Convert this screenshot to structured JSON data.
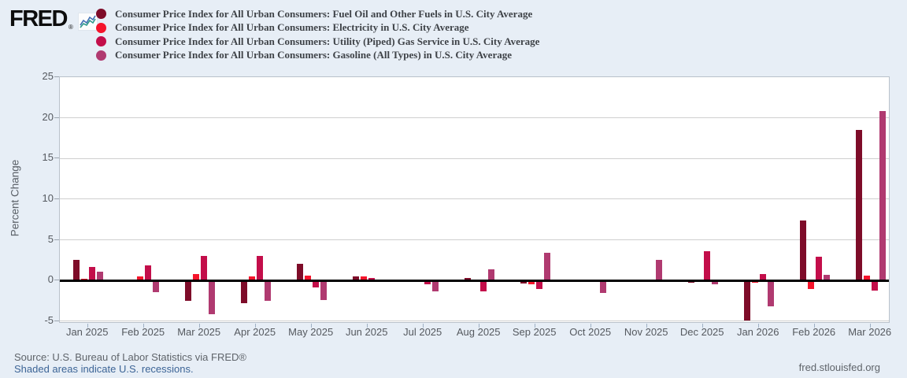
{
  "header": {
    "logo_text": "FRED",
    "logo_reg": "®"
  },
  "legend": {
    "items": [
      {
        "label": "Consumer Price Index for All Urban Consumers: Fuel Oil and Other Fuels in U.S. City Average",
        "color": "#7e0c29"
      },
      {
        "label": "Consumer Price Index for All Urban Consumers: Electricity in U.S. City Average",
        "color": "#f5142b"
      },
      {
        "label": "Consumer Price Index for All Urban Consumers: Utility (Piped) Gas Service in U.S. City Average",
        "color": "#c30e4a"
      },
      {
        "label": "Consumer Price Index for All Urban Consumers: Gasoline (All Types) in U.S. City Average",
        "color": "#b03a70"
      }
    ]
  },
  "chart_data": {
    "type": "bar",
    "title": "",
    "xlabel": "",
    "ylabel": "Percent Change",
    "ylim": [
      -5.3,
      25
    ],
    "yticks": [
      25,
      20,
      15,
      10,
      5,
      0,
      -5
    ],
    "grid": true,
    "legend_position": "top",
    "categories": [
      "Jan 2025",
      "Feb 2025",
      "Mar 2025",
      "Apr 2025",
      "May 2025",
      "Jun 2025",
      "Jul 2025",
      "Aug 2025",
      "Sep 2025",
      "Oct 2025",
      "Nov 2025",
      "Dec 2025",
      "Jan 2026",
      "Feb 2026",
      "Mar 2026"
    ],
    "series": [
      {
        "name": "Consumer Price Index for All Urban Consumers: Fuel Oil and Other Fuels in U.S. City Average",
        "color": "#7e0c29",
        "values": [
          2.5,
          0,
          -2.5,
          -2.8,
          2.1,
          0.5,
          0,
          0.3,
          -0.4,
          0,
          0,
          -0.3,
          -4.9,
          7.4,
          18.5
        ]
      },
      {
        "name": "Consumer Price Index for All Urban Consumers: Electricity in U.S. City Average",
        "color": "#f5142b",
        "values": [
          0.2,
          0.5,
          0.8,
          0.5,
          0.6,
          0.5,
          0,
          0,
          -0.5,
          0,
          0,
          0,
          -0.3,
          -1.0,
          0.6
        ]
      },
      {
        "name": "Consumer Price Index for All Urban Consumers: Utility (Piped) Gas Service in U.S. City Average",
        "color": "#c30e4a",
        "values": [
          1.7,
          1.9,
          3.0,
          3.0,
          -0.8,
          0.3,
          -0.5,
          -1.3,
          -1.0,
          0,
          0,
          3.6,
          0.8,
          2.9,
          -1.2
        ]
      },
      {
        "name": "Consumer Price Index for All Urban Consumers: Gasoline (All Types) in U.S. City Average",
        "color": "#b03a70",
        "values": [
          1.1,
          -1.4,
          -4.1,
          -2.5,
          -2.4,
          0,
          -1.3,
          1.4,
          3.4,
          -1.5,
          2.5,
          -0.5,
          -3.2,
          0.7,
          20.8
        ]
      }
    ]
  },
  "footer": {
    "source": "Source: U.S. Bureau of Labor Statistics via FRED®",
    "recession_note": "Shaded areas indicate U.S. recessions.",
    "site": "fred.stlouisfed.org"
  }
}
